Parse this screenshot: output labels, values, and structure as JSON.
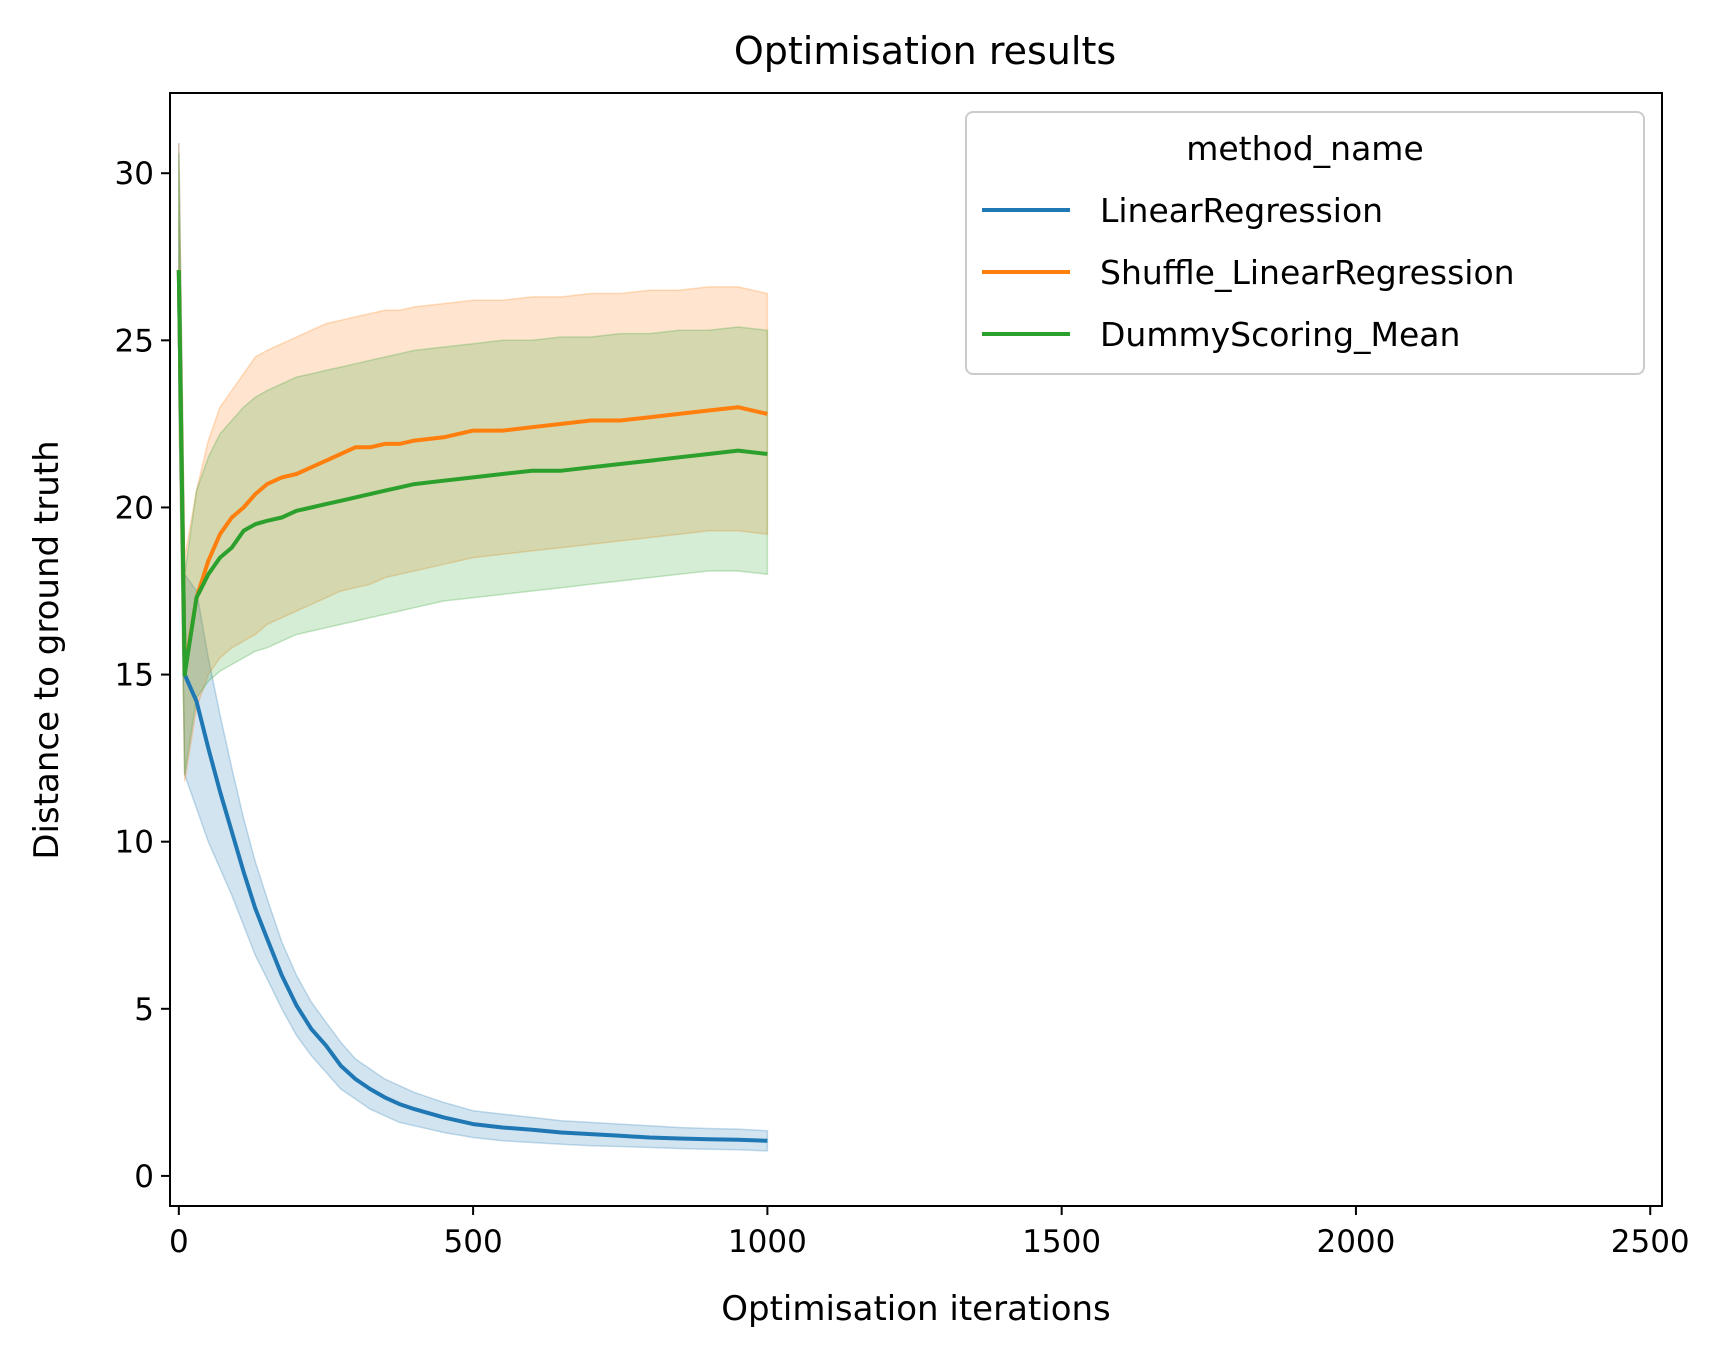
{
  "chart_data": {
    "type": "line",
    "title": "Optimisation results",
    "xlabel": "Optimisation iterations",
    "ylabel": "Distance to ground truth",
    "xlim": [
      -15,
      2520
    ],
    "ylim": [
      -0.9,
      32.4
    ],
    "xticks": [
      0,
      500,
      1000,
      1500,
      2000,
      2500
    ],
    "yticks": [
      0,
      5,
      10,
      15,
      20,
      25,
      30
    ],
    "grid": false,
    "legend": {
      "title": "method_name",
      "position": "upper right"
    },
    "series": [
      {
        "name": "LinearRegression",
        "color": "#1f77b4",
        "x": [
          0,
          10,
          30,
          50,
          70,
          90,
          110,
          130,
          150,
          175,
          200,
          225,
          250,
          275,
          300,
          325,
          350,
          375,
          400,
          450,
          500,
          550,
          600,
          650,
          700,
          750,
          800,
          850,
          900,
          950,
          1000
        ],
        "y": [
          27.1,
          15.0,
          14.2,
          12.8,
          11.5,
          10.3,
          9.1,
          8.0,
          7.1,
          6.0,
          5.1,
          4.4,
          3.9,
          3.3,
          2.9,
          2.6,
          2.35,
          2.15,
          2.0,
          1.75,
          1.55,
          1.45,
          1.38,
          1.3,
          1.25,
          1.2,
          1.15,
          1.12,
          1.1,
          1.08,
          1.05
        ],
        "ci_low": [
          23.5,
          12.0,
          11.0,
          10.0,
          9.2,
          8.4,
          7.5,
          6.6,
          5.9,
          5.0,
          4.2,
          3.6,
          3.1,
          2.6,
          2.3,
          2.0,
          1.8,
          1.6,
          1.5,
          1.3,
          1.15,
          1.05,
          1.0,
          0.95,
          0.9,
          0.88,
          0.85,
          0.82,
          0.8,
          0.78,
          0.75
        ],
        "ci_high": [
          30.9,
          18.0,
          17.5,
          15.5,
          13.8,
          12.2,
          10.7,
          9.4,
          8.3,
          7.0,
          6.0,
          5.2,
          4.6,
          4.0,
          3.5,
          3.2,
          2.9,
          2.7,
          2.5,
          2.2,
          1.95,
          1.85,
          1.75,
          1.65,
          1.6,
          1.55,
          1.5,
          1.45,
          1.42,
          1.4,
          1.35
        ]
      },
      {
        "name": "Shuffle_LinearRegression",
        "color": "#ff7f0e",
        "x": [
          0,
          10,
          30,
          50,
          70,
          90,
          110,
          130,
          150,
          175,
          200,
          225,
          250,
          275,
          300,
          325,
          350,
          375,
          400,
          450,
          500,
          550,
          600,
          650,
          700,
          750,
          800,
          850,
          900,
          950,
          1000
        ],
        "y": [
          27.1,
          15.1,
          17.3,
          18.4,
          19.2,
          19.7,
          20.0,
          20.4,
          20.7,
          20.9,
          21.0,
          21.2,
          21.4,
          21.6,
          21.8,
          21.8,
          21.9,
          21.9,
          22.0,
          22.1,
          22.3,
          22.3,
          22.4,
          22.5,
          22.6,
          22.6,
          22.7,
          22.8,
          22.9,
          23.0,
          22.8
        ],
        "ci_low": [
          23.5,
          11.8,
          14.0,
          15.0,
          15.5,
          15.8,
          16.0,
          16.2,
          16.5,
          16.7,
          16.9,
          17.1,
          17.3,
          17.5,
          17.6,
          17.7,
          17.9,
          18.0,
          18.1,
          18.3,
          18.5,
          18.6,
          18.7,
          18.8,
          18.9,
          19.0,
          19.1,
          19.2,
          19.3,
          19.3,
          19.2
        ],
        "ci_high": [
          30.9,
          18.5,
          20.5,
          22.0,
          23.0,
          23.5,
          24.0,
          24.5,
          24.7,
          24.9,
          25.1,
          25.3,
          25.5,
          25.6,
          25.7,
          25.8,
          25.9,
          25.9,
          26.0,
          26.1,
          26.2,
          26.2,
          26.3,
          26.3,
          26.4,
          26.4,
          26.5,
          26.5,
          26.6,
          26.6,
          26.4
        ]
      },
      {
        "name": "DummyScoring_Mean",
        "color": "#2ca02c",
        "x": [
          0,
          10,
          30,
          50,
          70,
          90,
          110,
          130,
          150,
          175,
          200,
          225,
          250,
          275,
          300,
          325,
          350,
          375,
          400,
          450,
          500,
          550,
          600,
          650,
          700,
          750,
          800,
          850,
          900,
          950,
          1000
        ],
        "y": [
          27.1,
          15.0,
          17.3,
          18.0,
          18.5,
          18.8,
          19.3,
          19.5,
          19.6,
          19.7,
          19.9,
          20.0,
          20.1,
          20.2,
          20.3,
          20.4,
          20.5,
          20.6,
          20.7,
          20.8,
          20.9,
          21.0,
          21.1,
          21.1,
          21.2,
          21.3,
          21.4,
          21.5,
          21.6,
          21.7,
          21.6
        ],
        "ci_low": [
          23.5,
          12.0,
          14.3,
          14.8,
          15.1,
          15.3,
          15.5,
          15.7,
          15.8,
          16.0,
          16.2,
          16.3,
          16.4,
          16.5,
          16.6,
          16.7,
          16.8,
          16.9,
          17.0,
          17.2,
          17.3,
          17.4,
          17.5,
          17.6,
          17.7,
          17.8,
          17.9,
          18.0,
          18.1,
          18.1,
          18.0
        ],
        "ci_high": [
          30.6,
          18.0,
          20.5,
          21.5,
          22.2,
          22.6,
          23.0,
          23.3,
          23.5,
          23.7,
          23.9,
          24.0,
          24.1,
          24.2,
          24.3,
          24.4,
          24.5,
          24.6,
          24.7,
          24.8,
          24.9,
          25.0,
          25.0,
          25.1,
          25.1,
          25.2,
          25.2,
          25.3,
          25.3,
          25.4,
          25.3
        ]
      }
    ]
  }
}
